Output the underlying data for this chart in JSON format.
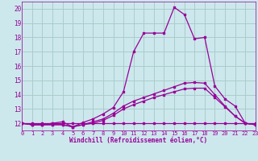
{
  "xlabel": "Windchill (Refroidissement éolien,°C)",
  "xlim": [
    0,
    23
  ],
  "ylim": [
    11.5,
    20.5
  ],
  "xticks": [
    0,
    1,
    2,
    3,
    4,
    5,
    6,
    7,
    8,
    9,
    10,
    11,
    12,
    13,
    14,
    15,
    16,
    17,
    18,
    19,
    20,
    21,
    22,
    23
  ],
  "yticks": [
    12,
    13,
    14,
    15,
    16,
    17,
    18,
    19,
    20
  ],
  "bg_color": "#cce8ec",
  "line_color": "#990099",
  "grid_color": "#aacccc",
  "series": [
    [
      12.0,
      12.0,
      12.0,
      12.0,
      12.0,
      12.0,
      12.0,
      12.0,
      12.0,
      12.0,
      12.0,
      12.0,
      12.0,
      12.0,
      12.0,
      12.0,
      12.0,
      12.0,
      12.0,
      12.0,
      12.0,
      12.0,
      12.0,
      12.0
    ],
    [
      12.0,
      11.9,
      11.9,
      11.9,
      11.9,
      11.75,
      11.9,
      12.0,
      12.2,
      12.55,
      13.0,
      13.3,
      13.55,
      13.8,
      14.0,
      14.2,
      14.4,
      14.45,
      14.45,
      13.8,
      13.15,
      12.5,
      12.0,
      11.9
    ],
    [
      12.0,
      11.9,
      11.9,
      11.9,
      11.9,
      11.75,
      11.9,
      12.1,
      12.3,
      12.7,
      13.2,
      13.55,
      13.8,
      14.05,
      14.3,
      14.55,
      14.8,
      14.85,
      14.8,
      14.0,
      13.2,
      12.5,
      12.0,
      11.9
    ],
    [
      12.0,
      11.9,
      11.9,
      12.0,
      12.1,
      11.75,
      12.05,
      12.3,
      12.65,
      13.1,
      14.2,
      17.0,
      18.3,
      18.3,
      18.3,
      20.1,
      19.6,
      17.9,
      18.0,
      14.6,
      13.7,
      13.2,
      12.0,
      11.9
    ]
  ]
}
